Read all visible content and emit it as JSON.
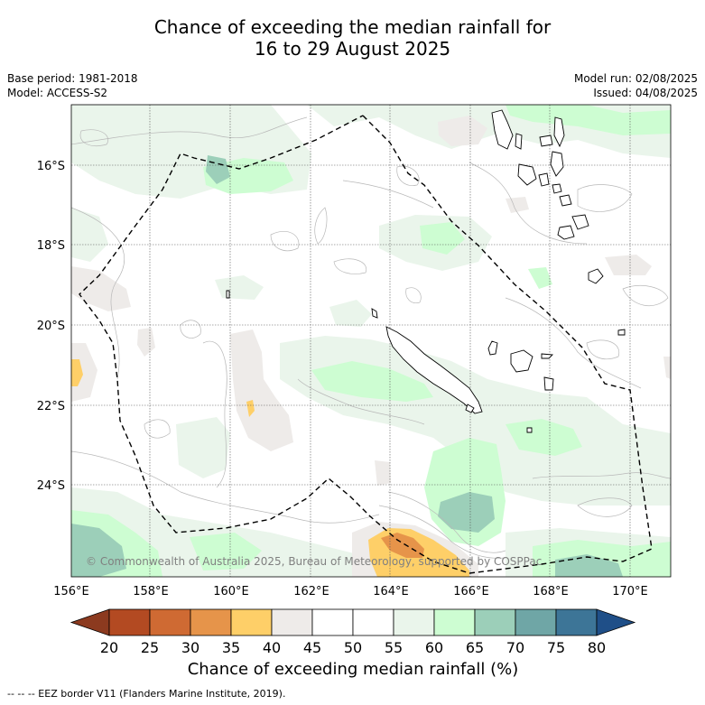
{
  "title": {
    "line1": "Chance of exceeding the median rainfall for",
    "line2": "16 to 29 August 2025"
  },
  "meta": {
    "base_period": "Base period: 1981-2018",
    "model": "Model: ACCESS-S2",
    "model_run": "Model run: 02/08/2025",
    "issued": "Issued: 04/08/2025"
  },
  "map": {
    "lat_ticks": [
      "16°S",
      "18°S",
      "20°S",
      "22°S",
      "24°S"
    ],
    "lon_ticks": [
      "156°E",
      "158°E",
      "160°E",
      "162°E",
      "164°E",
      "166°E",
      "168°E",
      "170°E"
    ],
    "copyright": "© Commonwealth of Australia 2025, Bureau of Meteorology, supported by COSPPac"
  },
  "colorbar": {
    "title": "Chance of exceeding median rainfall (%)",
    "labels": [
      "20",
      "25",
      "30",
      "35",
      "40",
      "45",
      "50",
      "55",
      "60",
      "65",
      "70",
      "75",
      "80"
    ],
    "colors": [
      "#8c3a1f",
      "#b34a22",
      "#cf6a33",
      "#e6944a",
      "#fecf68",
      "#eeebe9",
      "#ffffff",
      "#ffffff",
      "#eaf5eb",
      "#cdfdd2",
      "#9ccfb9",
      "#6fa6a6",
      "#3d7597",
      "#1f4f88"
    ]
  },
  "footer": "-- -- -- EEZ border V11 (Flanders Marine Institute, 2019)."
}
